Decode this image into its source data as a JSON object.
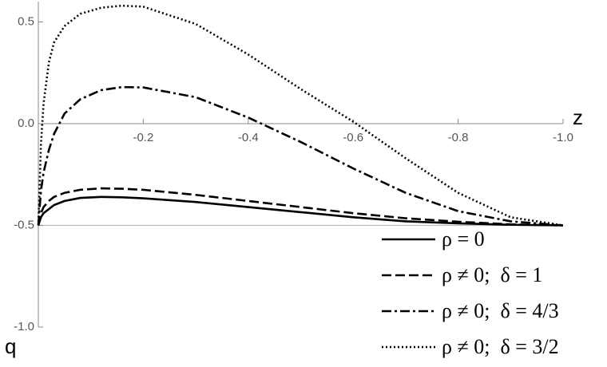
{
  "chart_data": {
    "type": "line",
    "x_label": "z",
    "y_label": "q",
    "x": [
      0,
      -0.005,
      -0.01,
      -0.02,
      -0.03,
      -0.05,
      -0.08,
      -0.12,
      -0.16,
      -0.2,
      -0.3,
      -0.4,
      -0.5,
      -0.6,
      -0.7,
      -0.8,
      -0.9,
      -1.0
    ],
    "series": [
      {
        "name": "ρ = 0",
        "color": "#000000",
        "dash": "solid",
        "values": [
          -0.5,
          -0.46,
          -0.44,
          -0.42,
          -0.4,
          -0.38,
          -0.365,
          -0.36,
          -0.362,
          -0.367,
          -0.385,
          -0.41,
          -0.435,
          -0.46,
          -0.48,
          -0.49,
          -0.497,
          -0.5
        ]
      },
      {
        "name": "ρ ≠ 0;  δ = 1",
        "color": "#000000",
        "dash": "dashed",
        "values": [
          -0.5,
          -0.44,
          -0.41,
          -0.38,
          -0.36,
          -0.34,
          -0.325,
          -0.318,
          -0.32,
          -0.325,
          -0.35,
          -0.38,
          -0.41,
          -0.44,
          -0.465,
          -0.482,
          -0.495,
          -0.5
        ]
      },
      {
        "name": "ρ ≠ 0;  δ = 4/3",
        "color": "#000000",
        "dash": "dashdot",
        "values": [
          -0.5,
          -0.33,
          -0.24,
          -0.13,
          -0.05,
          0.05,
          0.12,
          0.165,
          0.18,
          0.178,
          0.13,
          0.03,
          -0.09,
          -0.22,
          -0.34,
          -0.43,
          -0.48,
          -0.5
        ]
      },
      {
        "name": "ρ ≠ 0;  δ = 3/2",
        "color": "#000000",
        "dash": "dotted",
        "values": [
          -0.5,
          -0.1,
          0.1,
          0.3,
          0.4,
          0.48,
          0.54,
          0.57,
          0.58,
          0.575,
          0.49,
          0.34,
          0.17,
          0.01,
          -0.17,
          -0.34,
          -0.46,
          -0.5
        ]
      }
    ],
    "xlim": [
      0,
      -1.0
    ],
    "xticks": [
      -0.2,
      -0.4,
      -0.6,
      -0.8,
      {
        "value": -1.0,
        "label": "-1.0"
      }
    ],
    "ylim": [
      -1.0,
      0.6
    ],
    "yticks": [
      0.5,
      {
        "value": 0,
        "label": "0.0"
      },
      -0.5,
      {
        "value": -1.0,
        "label": "-1.0"
      }
    ],
    "hlines": [
      -0.5
    ],
    "hline_color": "#bbbbbb",
    "legend": "lower right",
    "grid": false
  }
}
